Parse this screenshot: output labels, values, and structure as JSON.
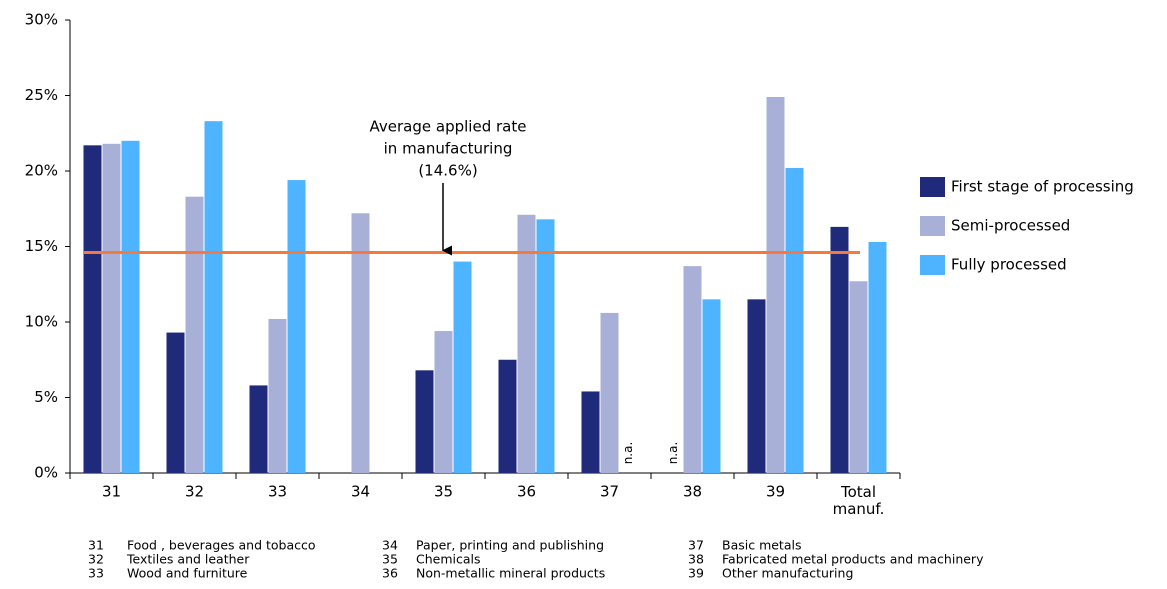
{
  "chart_data": {
    "type": "bar",
    "categories": [
      "31",
      "32",
      "33",
      "34",
      "35",
      "36",
      "37",
      "38",
      "39",
      "Total manuf."
    ],
    "series": [
      {
        "name": "First stage of processing",
        "color": "#1f2a7a",
        "values": [
          21.7,
          9.3,
          5.8,
          null,
          6.8,
          7.5,
          5.4,
          null,
          11.5,
          16.3
        ],
        "value_labels": [
          null,
          null,
          null,
          null,
          null,
          null,
          null,
          "n.a.",
          null,
          null
        ]
      },
      {
        "name": "Semi-processed",
        "color": "#a8b0d8",
        "values": [
          21.8,
          18.3,
          10.2,
          17.2,
          9.4,
          17.1,
          10.6,
          13.7,
          24.9,
          12.7
        ]
      },
      {
        "name": "Fully processed",
        "color": "#4fb4ff",
        "values": [
          22.0,
          23.3,
          19.4,
          null,
          14.0,
          16.8,
          null,
          11.5,
          20.2,
          15.3
        ],
        "value_labels": [
          null,
          null,
          null,
          null,
          null,
          null,
          "n.a.",
          null,
          null,
          null
        ]
      }
    ],
    "ylim": [
      0,
      30
    ],
    "yticks": [
      {
        "value": 0,
        "label": "0%"
      },
      {
        "value": 5,
        "label": "5%"
      },
      {
        "value": 10,
        "label": "10%"
      },
      {
        "value": 15,
        "label": "15%"
      },
      {
        "value": 20,
        "label": "20%"
      },
      {
        "value": 25,
        "label": "25%"
      },
      {
        "value": 30,
        "label": "30%"
      }
    ],
    "reference_line": {
      "value": 14.6,
      "color": "#f4793b",
      "label_lines": [
        "Average applied rate",
        "in manufacturing",
        "(14.6%)"
      ]
    },
    "legend": "right",
    "notes": [
      [
        {
          "code": "31",
          "text": "Food , beverages and tobacco"
        },
        {
          "code": "32",
          "text": "Textiles and leather"
        },
        {
          "code": "33",
          "text": "Wood and furniture"
        }
      ],
      [
        {
          "code": "34",
          "text": "Paper, printing and publishing"
        },
        {
          "code": "35",
          "text": "Chemicals"
        },
        {
          "code": "36",
          "text": "Non-metallic mineral products"
        }
      ],
      [
        {
          "code": "37",
          "text": "Basic metals"
        },
        {
          "code": "38",
          "text": "Fabricated metal products and machinery"
        },
        {
          "code": "39",
          "text": "Other manufacturing"
        }
      ]
    ]
  }
}
